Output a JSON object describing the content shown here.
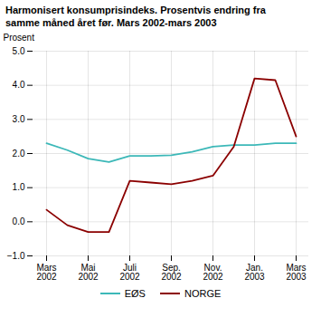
{
  "chart_data": {
    "type": "line",
    "title": "Harmonisert konsumprisindeks. Prosentvis endring fra\nsamme måned året før. Mars 2002-mars 2003",
    "y_label": "Prosent",
    "categories": [
      "Mars\n2002",
      null,
      "Mai\n2002",
      null,
      "Juli\n2002",
      null,
      "Sep.\n2002",
      null,
      "Nov.\n2002",
      null,
      "Jan.\n2003",
      null,
      "Mars\n2003"
    ],
    "series": [
      {
        "name": "EØS",
        "color": "#3cb8b8",
        "values": [
          2.3,
          2.1,
          1.85,
          1.75,
          1.93,
          1.93,
          1.95,
          2.05,
          2.2,
          2.25,
          2.25,
          2.3,
          2.3
        ]
      },
      {
        "name": "NORGE",
        "color": "#8b0000",
        "values": [
          0.35,
          -0.1,
          -0.3,
          -0.3,
          1.2,
          1.15,
          1.1,
          1.2,
          1.35,
          2.2,
          4.2,
          4.15,
          2.5
        ]
      }
    ],
    "ylim": [
      -1,
      5
    ],
    "yticks": [
      -1,
      0,
      1,
      2,
      3,
      4,
      5
    ],
    "grid": true,
    "legend": "bottom"
  }
}
